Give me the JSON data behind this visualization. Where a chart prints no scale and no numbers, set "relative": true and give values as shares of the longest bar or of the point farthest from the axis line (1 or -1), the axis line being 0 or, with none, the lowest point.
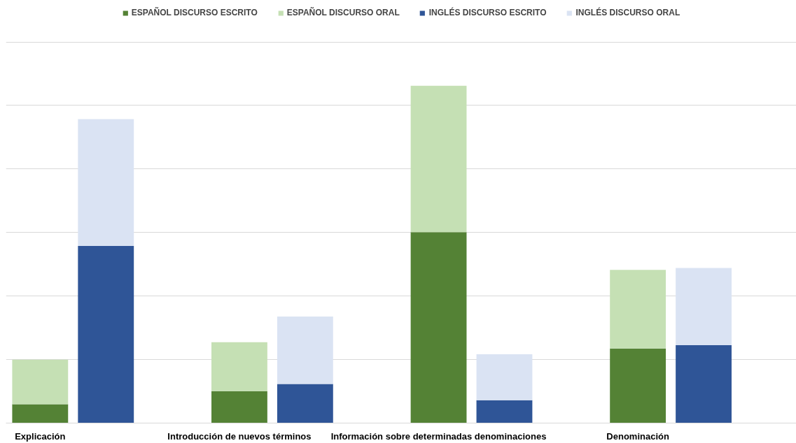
{
  "chart_data": {
    "type": "bar",
    "relative": true,
    "stacked": true,
    "grid": "y",
    "legend": "top",
    "categories": [
      "Explicación",
      null,
      "Introducción de nuevos términos",
      null,
      "Información sobre determinadas denominaciones",
      null,
      "Denominación",
      null
    ],
    "series": [
      {
        "name": "ESPAÑOL DISCURSO ESCRITO",
        "color": "#548235",
        "values": [
          0.056,
          null,
          0.095,
          null,
          0.566,
          null,
          0.221,
          null
        ]
      },
      {
        "name": "ESPAÑOL DISCURSO ORAL",
        "color": "#c5e0b4",
        "values": [
          0.132,
          null,
          0.145,
          null,
          0.434,
          null,
          0.233,
          null
        ]
      },
      {
        "name": "INGLÉS DISCURSO ESCRITO",
        "color": "#2f5597",
        "values": [
          null,
          0.525,
          null,
          0.116,
          null,
          0.068,
          null,
          0.231
        ]
      },
      {
        "name": "INGLÉS DISCURSO ORAL",
        "color": "#dae3f3",
        "values": [
          null,
          0.376,
          null,
          0.2,
          null,
          0.136,
          null,
          0.229
        ]
      }
    ]
  }
}
